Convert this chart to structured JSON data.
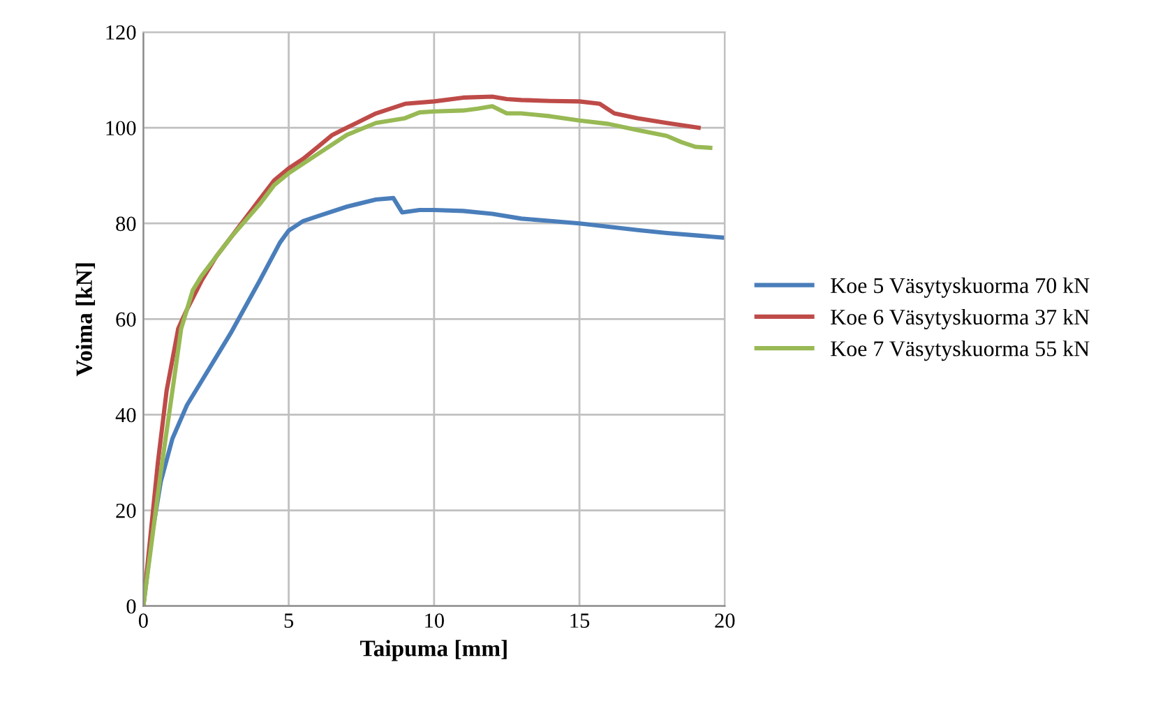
{
  "chart_data": {
    "type": "line",
    "xlabel": "Taipuma [mm]",
    "ylabel": "Voima [kN]",
    "xlim": [
      0,
      20
    ],
    "xticks": [
      0,
      5,
      10,
      15,
      20
    ],
    "ylim": [
      0,
      120
    ],
    "yticks": [
      0,
      20,
      40,
      60,
      80,
      100,
      120
    ],
    "grid": true,
    "legend": "right",
    "marker": "none",
    "line_style": "solid",
    "series": [
      {
        "name": "Koe 5 Väsytyskuorma 70 kN",
        "color": "#4a7ebb",
        "x": [
          0,
          0.3,
          0.6,
          1,
          1.5,
          2,
          3,
          4,
          4.7,
          5,
          5.5,
          6,
          7,
          8,
          8.6,
          8.9,
          9.5,
          10,
          11,
          12,
          13,
          14,
          15,
          16,
          17,
          18,
          19,
          20
        ],
        "values": [
          0,
          15,
          26,
          35,
          42,
          47,
          57,
          68,
          76,
          78.5,
          80.5,
          81.5,
          83.5,
          85,
          85.3,
          82.3,
          82.8,
          82.8,
          82.6,
          82,
          81,
          80.5,
          80,
          79.3,
          78.6,
          78,
          77.5,
          77
        ]
      },
      {
        "name": "Koe 6 Väsytyskuorma 37 kN",
        "color": "#be4b48",
        "x": [
          0,
          0.3,
          0.5,
          0.8,
          1.2,
          1.5,
          2,
          2.5,
          3,
          3.5,
          4,
          4.5,
          5,
          5.5,
          6,
          6.5,
          7,
          8,
          9,
          10,
          11,
          12,
          12.5,
          13,
          14,
          15,
          15.7,
          16.2,
          17,
          18,
          19.1
        ],
        "values": [
          0,
          18,
          30,
          45,
          58,
          62,
          68,
          73,
          77,
          81,
          85,
          89,
          91.5,
          93.5,
          96,
          98.5,
          100,
          103,
          105,
          105.5,
          106.3,
          106.5,
          106,
          105.8,
          105.6,
          105.5,
          105,
          103,
          102,
          101,
          100
        ]
      },
      {
        "name": "Koe 7 Väsytyskuorma 55 kN",
        "color": "#98b954",
        "x": [
          0,
          0.3,
          0.6,
          1,
          1.3,
          1.7,
          2,
          2.5,
          3,
          3.5,
          4,
          4.5,
          5,
          6,
          7,
          8,
          9,
          9.5,
          10,
          11,
          11.5,
          12,
          12.5,
          13,
          14,
          15,
          16,
          17,
          18,
          18.5,
          19,
          19.5
        ],
        "values": [
          0,
          14,
          28,
          45,
          58,
          66,
          69,
          73,
          77,
          80.5,
          84,
          88,
          90.5,
          94.5,
          98.5,
          101,
          102,
          103.2,
          103.4,
          103.6,
          104,
          104.5,
          103,
          103,
          102.4,
          101.5,
          100.8,
          99.5,
          98.3,
          97,
          96,
          95.8
        ]
      }
    ]
  }
}
